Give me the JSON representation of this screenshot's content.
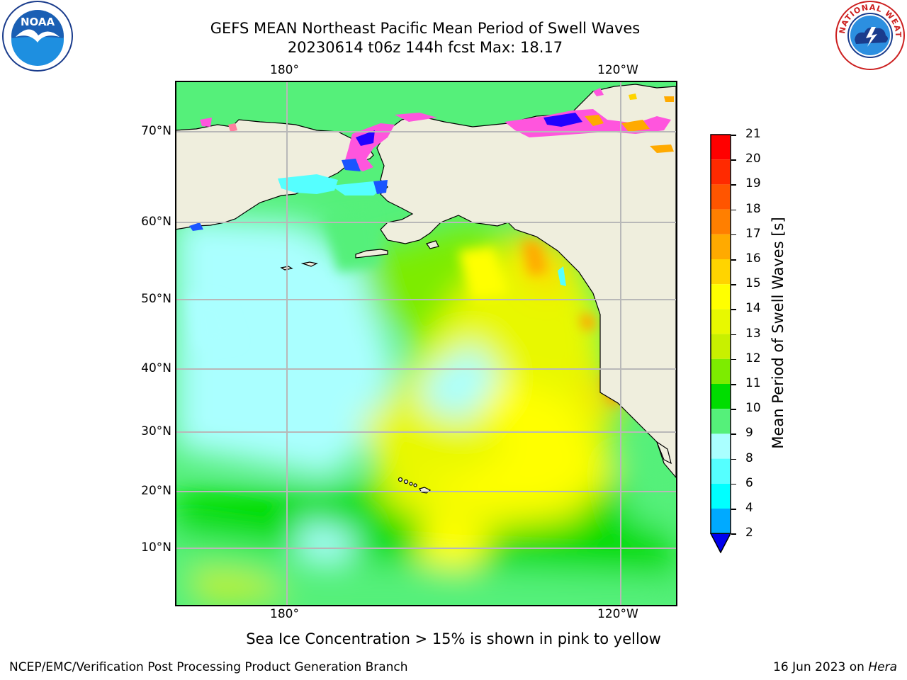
{
  "title": {
    "line1": "GEFS MEAN Northeast Pacific Mean Period of Swell Waves",
    "line2": "20230614 t06z 144h fcst   Max: 18.17"
  },
  "map": {
    "lon_top": [
      "180°",
      "120°W"
    ],
    "lon_bottom": [
      "180°",
      "120°W"
    ],
    "lat_labels": [
      "70°N",
      "60°N",
      "50°N",
      "40°N",
      "30°N",
      "20°N",
      "10°N"
    ],
    "colors": {
      "land": "#efeedd",
      "gridline": "#b8b8b8",
      "coast": "#000000"
    }
  },
  "colorbar": {
    "label": "Mean Period of Swell Waves [s]",
    "ticks": [
      "21",
      "20",
      "19",
      "18",
      "17",
      "16",
      "15",
      "14",
      "13",
      "12",
      "11",
      "10",
      "9",
      "8",
      "6",
      "4",
      "2"
    ],
    "colors": [
      "#ff0000",
      "#ff2a00",
      "#ff5500",
      "#ff7f00",
      "#ffaa00",
      "#ffd400",
      "#ffff00",
      "#e8f800",
      "#c8f000",
      "#7dec00",
      "#00dd00",
      "#55f07a",
      "#aaffff",
      "#55ffff",
      "#00ffff",
      "#00aaff",
      "#0055ff"
    ],
    "extend_color": "#0000ee"
  },
  "note": "Sea Ice Concentration > 15% is shown in pink to yellow",
  "footer": {
    "left": "NCEP/EMC/Verification Post Processing Product Generation Branch",
    "right_date": "16 Jun 2023 on ",
    "right_host": "Hera"
  },
  "logos": {
    "noaa_icon": "noaa-logo-icon",
    "nws_icon": "nws-logo-icon",
    "noaa_text": "NOAA",
    "nws_ring_text": "NATIONAL WEATHER SERVICE"
  }
}
